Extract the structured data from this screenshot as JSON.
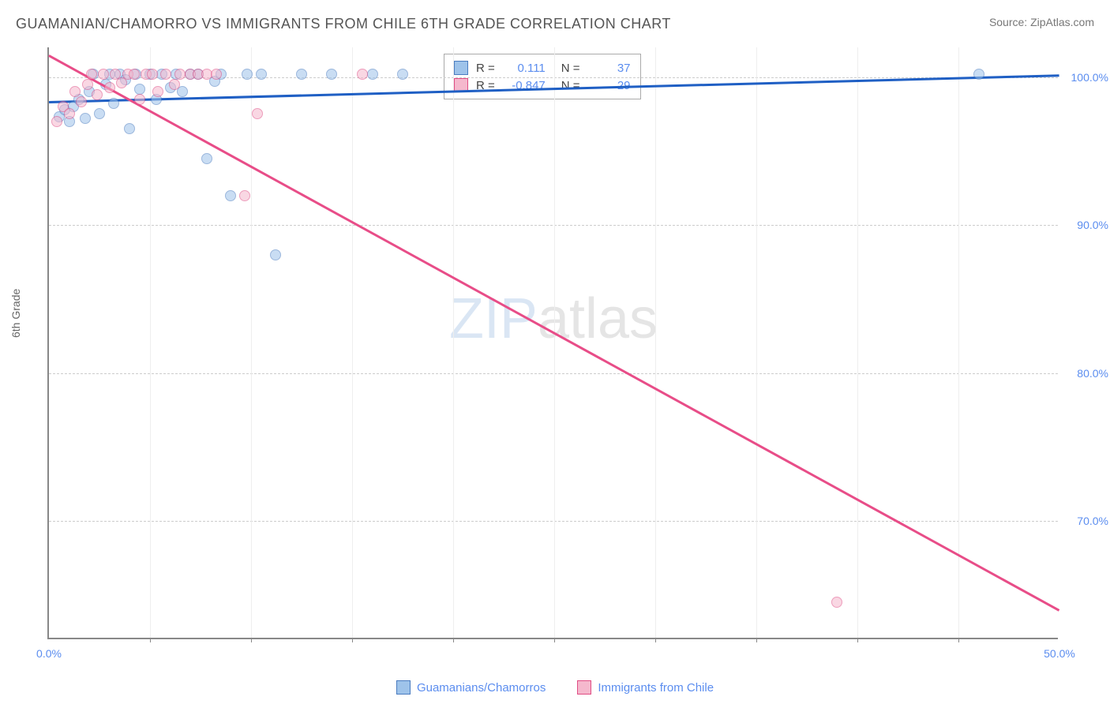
{
  "title": "GUAMANIAN/CHAMORRO VS IMMIGRANTS FROM CHILE 6TH GRADE CORRELATION CHART",
  "source": "Source: ZipAtlas.com",
  "y_axis_label": "6th Grade",
  "watermark": {
    "part1": "ZIP",
    "part2": "atlas"
  },
  "chart": {
    "type": "scatter",
    "xlim": [
      0,
      50
    ],
    "ylim": [
      62,
      102
    ],
    "x_ticks": [
      0.0,
      50.0
    ],
    "x_tick_labels": [
      "0.0%",
      "50.0%"
    ],
    "x_minor_ticks": [
      5,
      10,
      15,
      20,
      25,
      30,
      35,
      40,
      45
    ],
    "y_ticks": [
      70.0,
      80.0,
      90.0,
      100.0
    ],
    "y_tick_labels": [
      "70.0%",
      "80.0%",
      "90.0%",
      "100.0%"
    ],
    "grid_color": "#cccccc",
    "background_color": "#ffffff",
    "marker_radius": 7,
    "marker_opacity": 0.55,
    "series": [
      {
        "name": "Guamanians/Chamorros",
        "fill_color": "#9ec3ea",
        "stroke_color": "#4a7cc0",
        "trend": {
          "color": "#1f5fc4",
          "x1": 0,
          "y1": 98.4,
          "x2": 50,
          "y2": 100.2,
          "width": 2.5
        },
        "R": "0.111",
        "N": "37",
        "points": [
          [
            0.5,
            97.3
          ],
          [
            0.8,
            97.8
          ],
          [
            1.0,
            97.0
          ],
          [
            1.2,
            98.0
          ],
          [
            1.5,
            98.5
          ],
          [
            1.8,
            97.2
          ],
          [
            2.0,
            99.0
          ],
          [
            2.2,
            100.2
          ],
          [
            2.5,
            97.5
          ],
          [
            2.8,
            99.5
          ],
          [
            3.0,
            100.2
          ],
          [
            3.2,
            98.2
          ],
          [
            3.5,
            100.2
          ],
          [
            3.8,
            99.8
          ],
          [
            4.0,
            96.5
          ],
          [
            4.3,
            100.2
          ],
          [
            4.5,
            99.2
          ],
          [
            5.0,
            100.2
          ],
          [
            5.3,
            98.5
          ],
          [
            5.6,
            100.2
          ],
          [
            6.0,
            99.3
          ],
          [
            6.3,
            100.2
          ],
          [
            6.6,
            99.0
          ],
          [
            7.0,
            100.2
          ],
          [
            7.4,
            100.2
          ],
          [
            7.8,
            94.5
          ],
          [
            8.2,
            99.7
          ],
          [
            8.5,
            100.2
          ],
          [
            9.0,
            92.0
          ],
          [
            9.8,
            100.2
          ],
          [
            10.5,
            100.2
          ],
          [
            11.2,
            88.0
          ],
          [
            12.5,
            100.2
          ],
          [
            14.0,
            100.2
          ],
          [
            16.0,
            100.2
          ],
          [
            17.5,
            100.2
          ],
          [
            46.0,
            100.2
          ]
        ]
      },
      {
        "name": "Immigrants from Chile",
        "fill_color": "#f5b8cd",
        "stroke_color": "#e04d84",
        "trend": {
          "color": "#e84d88",
          "x1": 0,
          "y1": 101.5,
          "x2": 50,
          "y2": 64.0,
          "width": 2.5
        },
        "R": "-0.847",
        "N": "29",
        "points": [
          [
            0.4,
            97.0
          ],
          [
            0.7,
            98.0
          ],
          [
            1.0,
            97.5
          ],
          [
            1.3,
            99.0
          ],
          [
            1.6,
            98.3
          ],
          [
            1.9,
            99.5
          ],
          [
            2.1,
            100.2
          ],
          [
            2.4,
            98.8
          ],
          [
            2.7,
            100.2
          ],
          [
            3.0,
            99.3
          ],
          [
            3.3,
            100.2
          ],
          [
            3.6,
            99.6
          ],
          [
            3.9,
            100.2
          ],
          [
            4.2,
            100.2
          ],
          [
            4.5,
            98.5
          ],
          [
            4.8,
            100.2
          ],
          [
            5.1,
            100.2
          ],
          [
            5.4,
            99.0
          ],
          [
            5.8,
            100.2
          ],
          [
            6.2,
            99.5
          ],
          [
            6.5,
            100.2
          ],
          [
            7.0,
            100.2
          ],
          [
            7.4,
            100.2
          ],
          [
            7.8,
            100.2
          ],
          [
            8.3,
            100.2
          ],
          [
            9.7,
            92.0
          ],
          [
            10.3,
            97.5
          ],
          [
            15.5,
            100.2
          ],
          [
            39.0,
            64.5
          ]
        ]
      }
    ]
  },
  "stats_legend": {
    "R_label": "R =",
    "N_label": "N ="
  },
  "bottom_legend": {
    "items": [
      {
        "label": "Guamanians/Chamorros",
        "fill": "#9ec3ea",
        "stroke": "#4a7cc0"
      },
      {
        "label": "Immigrants from Chile",
        "fill": "#f5b8cd",
        "stroke": "#e04d84"
      }
    ]
  }
}
